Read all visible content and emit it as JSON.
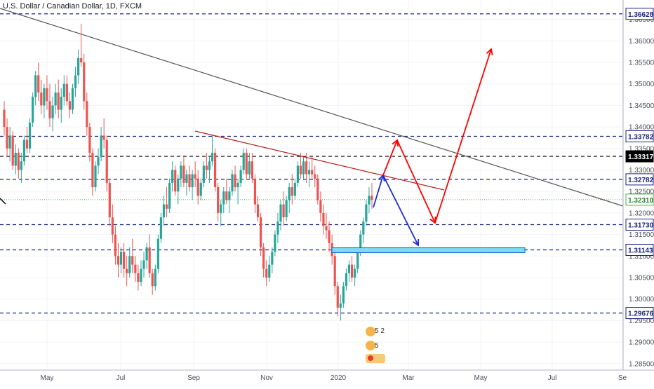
{
  "header": {
    "symbol_title": "U.S. Dollar / Canadian Dollar, 1D, FXCM"
  },
  "colors": {
    "up": "#26a69a",
    "down": "#ef5350",
    "blue_level": "#1a237e",
    "black_level": "#000000",
    "current_price": "#4caf50",
    "trend_line": "#555555",
    "resistance_line": "#b71c1c",
    "bull_arrow": "#ff0000",
    "bear_arrow": "#1e2bd6",
    "zone_fill": "#7fd8f5",
    "zone_border": "#1a5fd0"
  },
  "chart_data": {
    "type": "candlestick",
    "title": "U.S. Dollar / Canadian Dollar, 1D, FXCM",
    "ylim": [
      1.2835,
      1.3695
    ],
    "y_ticks": [
      "1.28500",
      "1.29000",
      "1.29500",
      "1.30000",
      "1.30500",
      "1.31000",
      "1.31500",
      "1.32000",
      "1.32500",
      "1.33000",
      "1.33500",
      "1.34000",
      "1.34500",
      "1.35000",
      "1.35500",
      "1.36000",
      "1.36500"
    ],
    "x_labels": [
      "May",
      "Jul",
      "Sep",
      "Nov",
      "2020",
      "Mar",
      "May",
      "Jul",
      "Se"
    ],
    "price_labels": [
      {
        "text": "1.36628",
        "value": 1.36628,
        "style": "blue"
      },
      {
        "text": "1.33782",
        "value": 1.33782,
        "style": "blue"
      },
      {
        "text": "1.33317",
        "value": 1.33317,
        "style": "black"
      },
      {
        "text": "1.32782",
        "value": 1.32782,
        "style": "blue"
      },
      {
        "text": "1.32310",
        "value": 1.3231,
        "style": "green"
      },
      {
        "text": "1.31730",
        "value": 1.3173,
        "style": "blue"
      },
      {
        "text": "1.31143",
        "value": 1.31143,
        "style": "blue"
      },
      {
        "text": "1.29676",
        "value": 1.29676,
        "style": "blue"
      }
    ],
    "horizontal_levels": [
      {
        "value": 1.36628,
        "style": "blue"
      },
      {
        "value": 1.33782,
        "style": "blue"
      },
      {
        "value": 1.33317,
        "style": "black"
      },
      {
        "value": 1.32782,
        "style": "blue"
      },
      {
        "value": 1.3231,
        "style": "green"
      },
      {
        "value": 1.3173,
        "style": "blue"
      },
      {
        "value": 1.31143,
        "style": "blue"
      },
      {
        "value": 1.29676,
        "style": "blue"
      }
    ],
    "candles": [
      [
        1.344,
        1.346,
        1.338,
        1.34
      ],
      [
        1.34,
        1.342,
        1.333,
        1.335
      ],
      [
        1.335,
        1.34,
        1.332,
        1.338
      ],
      [
        1.338,
        1.339,
        1.33,
        1.331
      ],
      [
        1.331,
        1.336,
        1.329,
        1.334
      ],
      [
        1.334,
        1.335,
        1.328,
        1.33
      ],
      [
        1.33,
        1.334,
        1.327,
        1.332
      ],
      [
        1.332,
        1.338,
        1.331,
        1.337
      ],
      [
        1.337,
        1.34,
        1.334,
        1.335
      ],
      [
        1.335,
        1.342,
        1.334,
        1.341
      ],
      [
        1.341,
        1.348,
        1.34,
        1.347
      ],
      [
        1.347,
        1.353,
        1.345,
        1.352
      ],
      [
        1.352,
        1.355,
        1.346,
        1.348
      ],
      [
        1.348,
        1.351,
        1.343,
        1.345
      ],
      [
        1.345,
        1.35,
        1.342,
        1.349
      ],
      [
        1.349,
        1.352,
        1.344,
        1.346
      ],
      [
        1.346,
        1.35,
        1.34,
        1.342
      ],
      [
        1.342,
        1.347,
        1.339,
        1.345
      ],
      [
        1.345,
        1.35,
        1.343,
        1.348
      ],
      [
        1.348,
        1.351,
        1.342,
        1.344
      ],
      [
        1.344,
        1.349,
        1.341,
        1.347
      ],
      [
        1.347,
        1.352,
        1.345,
        1.35
      ],
      [
        1.35,
        1.352,
        1.345,
        1.346
      ],
      [
        1.346,
        1.348,
        1.342,
        1.344
      ],
      [
        1.344,
        1.35,
        1.343,
        1.349
      ],
      [
        1.349,
        1.354,
        1.347,
        1.352
      ],
      [
        1.352,
        1.358,
        1.35,
        1.356
      ],
      [
        1.356,
        1.364,
        1.354,
        1.355
      ],
      [
        1.355,
        1.357,
        1.344,
        1.346
      ],
      [
        1.346,
        1.348,
        1.338,
        1.34
      ],
      [
        1.34,
        1.341,
        1.332,
        1.334
      ],
      [
        1.334,
        1.335,
        1.324,
        1.326
      ],
      [
        1.326,
        1.332,
        1.325,
        1.331
      ],
      [
        1.331,
        1.335,
        1.329,
        1.333
      ],
      [
        1.333,
        1.34,
        1.332,
        1.338
      ],
      [
        1.338,
        1.342,
        1.335,
        1.337
      ],
      [
        1.337,
        1.338,
        1.325,
        1.327
      ],
      [
        1.327,
        1.328,
        1.317,
        1.319
      ],
      [
        1.319,
        1.322,
        1.313,
        1.315
      ],
      [
        1.315,
        1.317,
        1.308,
        1.31
      ],
      [
        1.31,
        1.313,
        1.305,
        1.308
      ],
      [
        1.308,
        1.312,
        1.306,
        1.311
      ],
      [
        1.311,
        1.313,
        1.305,
        1.307
      ],
      [
        1.307,
        1.31,
        1.303,
        1.306
      ],
      [
        1.306,
        1.312,
        1.305,
        1.31
      ],
      [
        1.31,
        1.314,
        1.306,
        1.308
      ],
      [
        1.308,
        1.31,
        1.304,
        1.306
      ],
      [
        1.306,
        1.308,
        1.302,
        1.304
      ],
      [
        1.304,
        1.309,
        1.303,
        1.307
      ],
      [
        1.307,
        1.311,
        1.305,
        1.309
      ],
      [
        1.309,
        1.313,
        1.307,
        1.312
      ],
      [
        1.312,
        1.315,
        1.305,
        1.306
      ],
      [
        1.306,
        1.307,
        1.301,
        1.303
      ],
      [
        1.303,
        1.308,
        1.302,
        1.307
      ],
      [
        1.307,
        1.315,
        1.306,
        1.314
      ],
      [
        1.314,
        1.32,
        1.313,
        1.319
      ],
      [
        1.319,
        1.324,
        1.317,
        1.322
      ],
      [
        1.322,
        1.326,
        1.319,
        1.321
      ],
      [
        1.321,
        1.328,
        1.32,
        1.327
      ],
      [
        1.327,
        1.332,
        1.325,
        1.33
      ],
      [
        1.33,
        1.331,
        1.324,
        1.325
      ],
      [
        1.325,
        1.329,
        1.322,
        1.328
      ],
      [
        1.328,
        1.332,
        1.326,
        1.331
      ],
      [
        1.331,
        1.333,
        1.326,
        1.327
      ],
      [
        1.327,
        1.33,
        1.324,
        1.329
      ],
      [
        1.329,
        1.331,
        1.325,
        1.326
      ],
      [
        1.326,
        1.33,
        1.323,
        1.329
      ],
      [
        1.329,
        1.332,
        1.326,
        1.328
      ],
      [
        1.328,
        1.33,
        1.322,
        1.324
      ],
      [
        1.324,
        1.328,
        1.323,
        1.327
      ],
      [
        1.327,
        1.332,
        1.326,
        1.331
      ],
      [
        1.331,
        1.334,
        1.328,
        1.33
      ],
      [
        1.33,
        1.333,
        1.327,
        1.332
      ],
      [
        1.332,
        1.338,
        1.331,
        1.334
      ],
      [
        1.334,
        1.335,
        1.325,
        1.326
      ],
      [
        1.326,
        1.327,
        1.318,
        1.32
      ],
      [
        1.32,
        1.323,
        1.317,
        1.322
      ],
      [
        1.322,
        1.326,
        1.32,
        1.325
      ],
      [
        1.325,
        1.328,
        1.322,
        1.323
      ],
      [
        1.323,
        1.326,
        1.32,
        1.325
      ],
      [
        1.325,
        1.33,
        1.324,
        1.329
      ],
      [
        1.329,
        1.331,
        1.325,
        1.326
      ],
      [
        1.326,
        1.328,
        1.322,
        1.327
      ],
      [
        1.327,
        1.331,
        1.326,
        1.33
      ],
      [
        1.33,
        1.335,
        1.329,
        1.334
      ],
      [
        1.334,
        1.335,
        1.328,
        1.329
      ],
      [
        1.329,
        1.334,
        1.328,
        1.332
      ],
      [
        1.332,
        1.334,
        1.327,
        1.328
      ],
      [
        1.328,
        1.329,
        1.32,
        1.322
      ],
      [
        1.322,
        1.324,
        1.318,
        1.319
      ],
      [
        1.319,
        1.32,
        1.31,
        1.312
      ],
      [
        1.312,
        1.313,
        1.305,
        1.307
      ],
      [
        1.307,
        1.309,
        1.303,
        1.305
      ],
      [
        1.305,
        1.31,
        1.304,
        1.308
      ],
      [
        1.308,
        1.312,
        1.306,
        1.311
      ],
      [
        1.311,
        1.316,
        1.31,
        1.315
      ],
      [
        1.315,
        1.32,
        1.313,
        1.318
      ],
      [
        1.318,
        1.323,
        1.316,
        1.322
      ],
      [
        1.322,
        1.325,
        1.317,
        1.319
      ],
      [
        1.319,
        1.324,
        1.318,
        1.323
      ],
      [
        1.323,
        1.327,
        1.32,
        1.326
      ],
      [
        1.326,
        1.329,
        1.322,
        1.324
      ],
      [
        1.324,
        1.328,
        1.323,
        1.327
      ],
      [
        1.327,
        1.332,
        1.326,
        1.331
      ],
      [
        1.331,
        1.334,
        1.328,
        1.329
      ],
      [
        1.329,
        1.333,
        1.328,
        1.332
      ],
      [
        1.332,
        1.334,
        1.327,
        1.329
      ],
      [
        1.329,
        1.332,
        1.326,
        1.33
      ],
      [
        1.33,
        1.333,
        1.328,
        1.329
      ],
      [
        1.329,
        1.331,
        1.326,
        1.328
      ],
      [
        1.328,
        1.329,
        1.322,
        1.323
      ],
      [
        1.323,
        1.325,
        1.318,
        1.32
      ],
      [
        1.32,
        1.322,
        1.315,
        1.317
      ],
      [
        1.317,
        1.32,
        1.314,
        1.316
      ],
      [
        1.316,
        1.318,
        1.311,
        1.313
      ],
      [
        1.313,
        1.315,
        1.308,
        1.31
      ],
      [
        1.31,
        1.311,
        1.301,
        1.303
      ],
      [
        1.303,
        1.304,
        1.296,
        1.298
      ],
      [
        1.298,
        1.301,
        1.295,
        1.299
      ],
      [
        1.299,
        1.304,
        1.298,
        1.303
      ],
      [
        1.303,
        1.307,
        1.302,
        1.306
      ],
      [
        1.306,
        1.309,
        1.304,
        1.308
      ],
      [
        1.308,
        1.31,
        1.304,
        1.305
      ],
      [
        1.305,
        1.308,
        1.303,
        1.307
      ],
      [
        1.307,
        1.312,
        1.306,
        1.311
      ],
      [
        1.311,
        1.316,
        1.31,
        1.315
      ],
      [
        1.315,
        1.319,
        1.313,
        1.318
      ],
      [
        1.318,
        1.323,
        1.317,
        1.322
      ],
      [
        1.322,
        1.326,
        1.32,
        1.324
      ],
      [
        1.324,
        1.327,
        1.321,
        1.3231
      ]
    ]
  }
}
